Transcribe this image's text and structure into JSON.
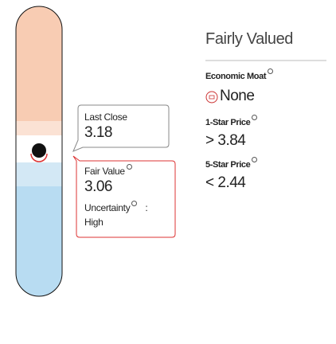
{
  "rating": "Fairly Valued",
  "economic_moat": {
    "label": "Economic Moat",
    "value": "None"
  },
  "one_star_price": {
    "label": "1-Star Price",
    "symbol": ">",
    "value": 3.84
  },
  "five_star_price": {
    "label": "5-Star Price",
    "symbol": "<",
    "value": 2.44
  },
  "last_close": {
    "label": "Last Close",
    "value": 3.18
  },
  "fair_value": {
    "label": "Fair Value",
    "value": 3.06,
    "uncertainty_label": "Uncertainty",
    "separator": ":",
    "uncertainty": "High"
  }
}
